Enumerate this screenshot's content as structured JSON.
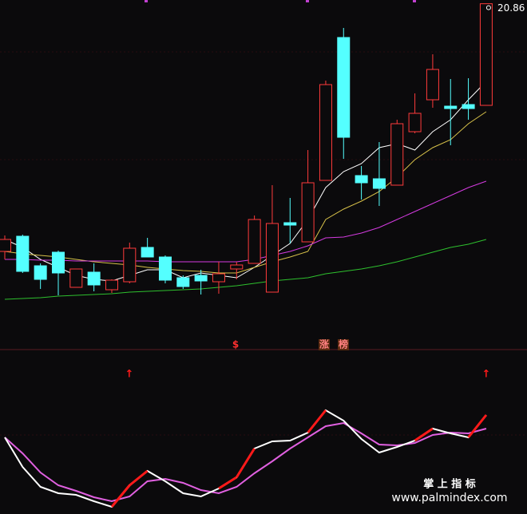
{
  "chart_data": [
    {
      "type": "candlestick",
      "ylim": [
        7.8,
        21.0
      ],
      "up_color": "#ff3b3b",
      "down_color": "#54ffff",
      "open": [
        11.55,
        12.12,
        11.01,
        11.52,
        10.2,
        10.77,
        10.11,
        10.41,
        11.7,
        11.34,
        10.56,
        10.65,
        10.41,
        10.89,
        11.1,
        10.02,
        12.63,
        11.91,
        14.22,
        19.59,
        14.4,
        14.28,
        14.04,
        16.05,
        17.25,
        17.01,
        17.07,
        17.04
      ],
      "high": [
        12.15,
        12.18,
        11.1,
        11.58,
        10.89,
        11.1,
        10.5,
        11.88,
        12.06,
        11.4,
        10.65,
        10.86,
        11.16,
        11.16,
        12.9,
        14.04,
        13.56,
        15.36,
        17.97,
        19.95,
        14.76,
        15.66,
        16.5,
        17.49,
        18.96,
        18.03,
        18.06,
        20.86
      ],
      "low": [
        11.25,
        10.74,
        10.14,
        9.9,
        10.2,
        10.05,
        9.99,
        10.35,
        11.34,
        10.35,
        10.14,
        9.93,
        9.96,
        10.5,
        11.1,
        10.02,
        11.85,
        11.91,
        14.22,
        15.03,
        13.5,
        13.26,
        14.04,
        15.99,
        16.95,
        15.54,
        16.5,
        17.04
      ],
      "close": [
        12.0,
        10.8,
        10.5,
        10.74,
        10.89,
        10.29,
        10.47,
        11.67,
        11.34,
        10.47,
        10.23,
        10.44,
        10.71,
        11.04,
        12.75,
        12.6,
        12.54,
        14.13,
        17.82,
        15.84,
        14.13,
        13.92,
        16.35,
        16.74,
        18.39,
        16.92,
        16.92,
        20.86
      ],
      "series": [
        {
          "color": "#ffffff",
          "values": [
            12.0,
            11.7,
            11.25,
            10.95,
            10.65,
            10.5,
            10.44,
            10.65,
            10.86,
            10.86,
            10.56,
            10.74,
            10.65,
            10.56,
            10.95,
            11.4,
            11.85,
            12.75,
            13.95,
            14.55,
            14.85,
            15.45,
            15.6,
            15.36,
            16.05,
            16.5,
            17.25,
            17.94
          ]
        },
        {
          "color": "#d8c24a",
          "values": [
            11.55,
            11.46,
            11.4,
            11.34,
            11.25,
            11.16,
            11.1,
            11.04,
            10.95,
            10.89,
            10.83,
            10.8,
            10.74,
            10.74,
            10.95,
            11.16,
            11.34,
            11.55,
            12.75,
            13.14,
            13.44,
            13.8,
            14.34,
            15.0,
            15.45,
            15.75,
            16.35,
            16.8
          ]
        },
        {
          "color": "#d43be0",
          "values": [
            11.25,
            11.25,
            11.22,
            11.22,
            11.19,
            11.19,
            11.19,
            11.19,
            11.19,
            11.16,
            11.16,
            11.16,
            11.16,
            11.16,
            11.25,
            11.4,
            11.55,
            11.76,
            12.06,
            12.09,
            12.24,
            12.45,
            12.75,
            13.05,
            13.35,
            13.65,
            13.95,
            14.19
          ]
        },
        {
          "color": "#2ec02e",
          "values": [
            9.75,
            9.78,
            9.81,
            9.87,
            9.9,
            9.93,
            9.96,
            10.02,
            10.05,
            10.08,
            10.11,
            10.14,
            10.2,
            10.26,
            10.35,
            10.44,
            10.5,
            10.56,
            10.71,
            10.8,
            10.89,
            11.01,
            11.16,
            11.34,
            11.52,
            11.7,
            11.82,
            12.0
          ]
        }
      ],
      "annotations": [
        "$",
        "涨",
        "榜"
      ]
    },
    {
      "type": "line",
      "ylim": [
        0,
        100
      ],
      "rise_color": "#ff1a1a",
      "series": [
        {
          "color": "#ffffff",
          "values": [
            46,
            27.5,
            15,
            11,
            10,
            6,
            2.5,
            16,
            25,
            18.5,
            11,
            9,
            14,
            21,
            39,
            43.5,
            44,
            49,
            63,
            56.5,
            45,
            36.5,
            40,
            44,
            51.5,
            48.5,
            46,
            60
          ]
        },
        {
          "color": "#e060e0",
          "values": [
            46,
            36,
            24,
            16,
            12.5,
            8.5,
            6,
            9,
            18.5,
            20,
            17.5,
            13,
            11,
            15,
            23.5,
            31,
            39,
            46,
            53,
            55,
            48.5,
            41.5,
            41,
            42.5,
            47.5,
            49,
            48.5,
            51.5
          ]
        }
      ],
      "annotations": [
        "↑",
        "↑"
      ]
    }
  ],
  "watermark": {
    "title": "掌 上 指 标",
    "url": "www.palmindex.com"
  }
}
